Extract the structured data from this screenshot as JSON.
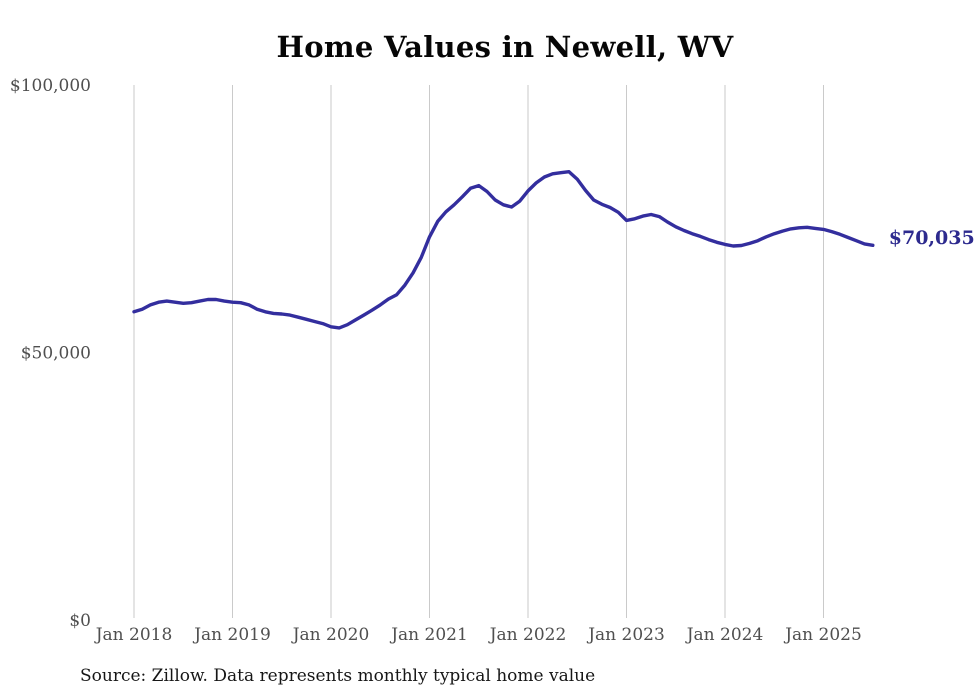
{
  "chart": {
    "title": "Home Values in Newell, WV",
    "source": "Source: Zillow. Data represents monthly typical home value",
    "latest_value_label": "$70,035"
  },
  "chart_data": {
    "type": "line",
    "title": "Home Values in Newell, WV",
    "xlabel": "",
    "ylabel": "",
    "ylim": [
      0,
      100000
    ],
    "grid": "vertical",
    "legend": "none",
    "line_color": "#332e9e",
    "annotation_color": "#2d2a8e",
    "grid_color": "#cacaca",
    "axis_label_color": "#4f4f4f",
    "y_ticks": [
      0,
      50000,
      100000
    ],
    "y_tick_labels": [
      "$0",
      "$50,000",
      "$100,000"
    ],
    "x_tick_labels": [
      "Jan 2018",
      "Jan 2019",
      "Jan 2020",
      "Jan 2021",
      "Jan 2022",
      "Jan 2023",
      "Jan 2024",
      "Jan 2025"
    ],
    "x_unit": "month",
    "x_start": "2018-01",
    "x_end": "2025-07",
    "latest_value": 70035,
    "latest_value_label": "$70,035",
    "x": [
      "2018-01",
      "2018-02",
      "2018-03",
      "2018-04",
      "2018-05",
      "2018-06",
      "2018-07",
      "2018-08",
      "2018-09",
      "2018-10",
      "2018-11",
      "2018-12",
      "2019-01",
      "2019-02",
      "2019-03",
      "2019-04",
      "2019-05",
      "2019-06",
      "2019-07",
      "2019-08",
      "2019-09",
      "2019-10",
      "2019-11",
      "2019-12",
      "2020-01",
      "2020-02",
      "2020-03",
      "2020-04",
      "2020-05",
      "2020-06",
      "2020-07",
      "2020-08",
      "2020-09",
      "2020-10",
      "2020-11",
      "2020-12",
      "2021-01",
      "2021-02",
      "2021-03",
      "2021-04",
      "2021-05",
      "2021-06",
      "2021-07",
      "2021-08",
      "2021-09",
      "2021-10",
      "2021-11",
      "2021-12",
      "2022-01",
      "2022-02",
      "2022-03",
      "2022-04",
      "2022-05",
      "2022-06",
      "2022-07",
      "2022-08",
      "2022-09",
      "2022-10",
      "2022-11",
      "2022-12",
      "2023-01",
      "2023-02",
      "2023-03",
      "2023-04",
      "2023-05",
      "2023-06",
      "2023-07",
      "2023-08",
      "2023-09",
      "2023-10",
      "2023-11",
      "2023-12",
      "2024-01",
      "2024-02",
      "2024-03",
      "2024-04",
      "2024-05",
      "2024-06",
      "2024-07",
      "2024-08",
      "2024-09",
      "2024-10",
      "2024-11",
      "2024-12",
      "2025-01",
      "2025-02",
      "2025-03",
      "2025-04",
      "2025-05",
      "2025-06",
      "2025-07"
    ],
    "series": [
      {
        "name": "Typical home value (USD)",
        "values": [
          57600,
          58100,
          58900,
          59400,
          59600,
          59400,
          59200,
          59300,
          59600,
          59900,
          59900,
          59600,
          59400,
          59300,
          58900,
          58100,
          57600,
          57300,
          57200,
          57000,
          56600,
          56200,
          55800,
          55400,
          54800,
          54600,
          55200,
          56100,
          57000,
          57900,
          58900,
          60000,
          60800,
          62600,
          64900,
          67800,
          71600,
          74500,
          76300,
          77600,
          79100,
          80700,
          81200,
          80100,
          78500,
          77600,
          77200,
          78300,
          80200,
          81700,
          82800,
          83400,
          83600,
          83800,
          82400,
          80300,
          78500,
          77700,
          77100,
          76200,
          74700,
          75000,
          75500,
          75800,
          75400,
          74400,
          73500,
          72800,
          72200,
          71700,
          71100,
          70600,
          70200,
          69900,
          70000,
          70400,
          70900,
          71600,
          72200,
          72700,
          73100,
          73300,
          73400,
          73200,
          73000,
          72600,
          72100,
          71500,
          70900,
          70300,
          70035
        ]
      }
    ]
  }
}
